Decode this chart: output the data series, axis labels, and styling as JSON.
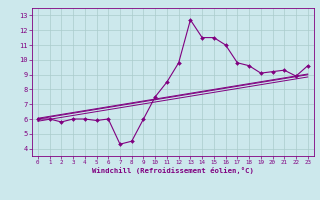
{
  "x_data": [
    0,
    1,
    2,
    3,
    4,
    5,
    6,
    7,
    8,
    9,
    10,
    11,
    12,
    13,
    14,
    15,
    16,
    17,
    18,
    19,
    20,
    21,
    22,
    23
  ],
  "y_main": [
    6.0,
    6.0,
    5.8,
    6.0,
    6.0,
    5.9,
    6.0,
    4.3,
    4.5,
    6.0,
    7.5,
    8.5,
    9.8,
    12.7,
    11.5,
    11.5,
    11.0,
    9.8,
    9.6,
    9.1,
    9.2,
    9.3,
    8.9,
    9.6
  ],
  "y_line1": [
    6.0,
    6.13,
    6.26,
    6.39,
    6.52,
    6.65,
    6.78,
    6.91,
    7.04,
    7.17,
    7.3,
    7.43,
    7.56,
    7.69,
    7.82,
    7.95,
    8.08,
    8.21,
    8.34,
    8.47,
    8.6,
    8.73,
    8.86,
    8.99
  ],
  "y_line2": [
    5.85,
    5.98,
    6.11,
    6.24,
    6.37,
    6.5,
    6.63,
    6.76,
    6.89,
    7.02,
    7.15,
    7.28,
    7.41,
    7.54,
    7.67,
    7.8,
    7.93,
    8.06,
    8.19,
    8.32,
    8.45,
    8.58,
    8.71,
    8.84
  ],
  "y_line3": [
    6.05,
    6.18,
    6.31,
    6.44,
    6.57,
    6.7,
    6.83,
    6.96,
    7.09,
    7.22,
    7.35,
    7.48,
    7.61,
    7.74,
    7.87,
    8.0,
    8.13,
    8.26,
    8.39,
    8.52,
    8.65,
    8.78,
    8.91,
    9.04
  ],
  "color": "#800080",
  "bg_color": "#cce8ec",
  "grid_color": "#aacccc",
  "xlabel": "Windchill (Refroidissement éolien,°C)",
  "ylim": [
    3.5,
    13.5
  ],
  "xlim": [
    -0.5,
    23.5
  ],
  "yticks": [
    4,
    5,
    6,
    7,
    8,
    9,
    10,
    11,
    12,
    13
  ],
  "xticks": [
    0,
    1,
    2,
    3,
    4,
    5,
    6,
    7,
    8,
    9,
    10,
    11,
    12,
    13,
    14,
    15,
    16,
    17,
    18,
    19,
    20,
    21,
    22,
    23
  ]
}
